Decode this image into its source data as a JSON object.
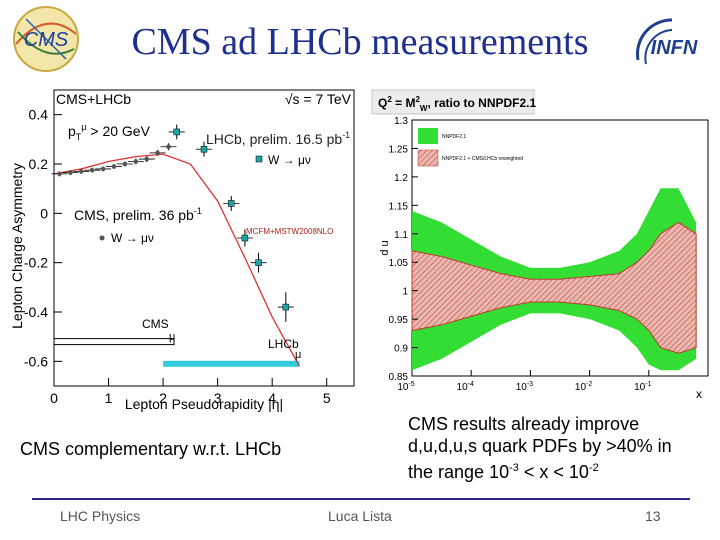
{
  "slide": {
    "title": "CMS ad LHCb measurements",
    "left_caption": "CMS complementary w.r.t. LHCb",
    "right_caption_l1": "CMS results already improve",
    "right_caption_l2": "d,u,d,u,s quark PDFs by >40% in",
    "right_caption_l3_a": "the range 10",
    "right_caption_l3_sup1": "-3",
    "right_caption_l3_b": " < x < 10",
    "right_caption_l3_sup2": "-2",
    "footer_left": "LHC Physics",
    "footer_center": "Luca Lista",
    "footer_right": "13",
    "infn_logo_text": "INFN",
    "cms_logo_text": "CMS"
  },
  "chart_data": [
    {
      "type": "scatter",
      "header_left": "CMS+LHCb",
      "header_right": "√s = 7 TeV",
      "cut_label": "p",
      "cut_sub": "T",
      "cut_sup": "μ",
      "cut_rest": " > 20 GeV",
      "lhcb_label": "LHCb, prelim. 16.5 pb",
      "lhcb_sup": "-1",
      "lhcb_channel": "W → μν",
      "cms_label": "CMS, prelim. 36 pb",
      "cms_sup": "-1",
      "cms_channel": "W → μν",
      "theory_label": "MCFM+MSTW2008NLO",
      "ylabel": "Lepton Charge Asymmetry",
      "xlabel": "Lepton Pseudorapidity |η|",
      "xlim": [
        0,
        5.5
      ],
      "ylim": [
        -0.7,
        0.5
      ],
      "xticks": [
        "0",
        "1",
        "2",
        "3",
        "4",
        "5"
      ],
      "yticks": [
        "0.4",
        "0.2",
        "0",
        "-0.2",
        "-0.4",
        "-0.6"
      ],
      "acceptance_cms_label": "CMS",
      "acceptance_cms_sym": "μ",
      "acceptance_cms": [
        0,
        2.2
      ],
      "acceptance_lhcb_label": "LHCb",
      "acceptance_lhcb_sym": "μ",
      "acceptance_lhcb": [
        2.0,
        4.5
      ],
      "series": [
        {
          "name": "CMS",
          "x": [
            0.1,
            0.3,
            0.5,
            0.7,
            0.9,
            1.1,
            1.3,
            1.5,
            1.7,
            1.9,
            2.1
          ],
          "y": [
            0.16,
            0.165,
            0.17,
            0.175,
            0.18,
            0.19,
            0.2,
            0.21,
            0.22,
            0.245,
            0.27
          ],
          "err": [
            0.01,
            0.01,
            0.01,
            0.01,
            0.01,
            0.01,
            0.01,
            0.012,
            0.012,
            0.012,
            0.014
          ]
        },
        {
          "name": "LHCb",
          "x": [
            2.25,
            2.75,
            3.25,
            3.5,
            3.75,
            4.25
          ],
          "y": [
            0.33,
            0.26,
            0.04,
            -0.1,
            -0.2,
            -0.38
          ],
          "err": [
            0.03,
            0.03,
            0.03,
            0.035,
            0.04,
            0.06
          ]
        }
      ],
      "theory": {
        "x": [
          0,
          0.5,
          1.0,
          1.5,
          2.0,
          2.5,
          3.0,
          3.5,
          4.0,
          4.5
        ],
        "y": [
          0.16,
          0.18,
          0.21,
          0.23,
          0.24,
          0.2,
          0.05,
          -0.18,
          -0.42,
          -0.62
        ]
      }
    },
    {
      "type": "area",
      "title": "Q",
      "title_sup1": "2",
      "title_mid": " = M",
      "title_sup2": "2",
      "title_sub": "W",
      "title_rest": ", ratio to NNPDF2.1",
      "legend": [
        "NNPDF2.1",
        "NNPDF2.1 + CMS/LHCb reweighted"
      ],
      "ylabel": "d u",
      "xlabel": "x",
      "log_x": true,
      "xlim": [
        1e-05,
        1
      ],
      "ylim": [
        0.85,
        1.3
      ],
      "yticks": [
        "1.3",
        "1.25",
        "1.2",
        "1.15",
        "1.1",
        "1.05",
        "1",
        "0.95",
        "0.9",
        "0.85"
      ],
      "xticks": [
        "10-5",
        "10-4",
        "10-3",
        "10-2",
        "10-1"
      ],
      "nnpdf_band": {
        "logx": [
          -5,
          -4.5,
          -4,
          -3.5,
          -3,
          -2.5,
          -2,
          -1.5,
          -1.2,
          -1.0,
          -0.8,
          -0.5,
          -0.2
        ],
        "upper": [
          1.14,
          1.12,
          1.09,
          1.06,
          1.04,
          1.04,
          1.05,
          1.07,
          1.1,
          1.14,
          1.18,
          1.18,
          1.12
        ],
        "lower": [
          0.86,
          0.88,
          0.91,
          0.94,
          0.96,
          0.96,
          0.95,
          0.93,
          0.9,
          0.87,
          0.86,
          0.86,
          0.88
        ]
      },
      "reweighted_band": {
        "logx": [
          -5,
          -4.5,
          -4,
          -3.5,
          -3,
          -2.5,
          -2,
          -1.5,
          -1.2,
          -1.0,
          -0.8,
          -0.5,
          -0.2
        ],
        "upper": [
          1.07,
          1.06,
          1.045,
          1.03,
          1.02,
          1.02,
          1.025,
          1.03,
          1.05,
          1.07,
          1.1,
          1.12,
          1.1
        ],
        "lower": [
          0.93,
          0.94,
          0.955,
          0.97,
          0.98,
          0.98,
          0.975,
          0.965,
          0.95,
          0.93,
          0.9,
          0.89,
          0.9
        ]
      }
    }
  ]
}
